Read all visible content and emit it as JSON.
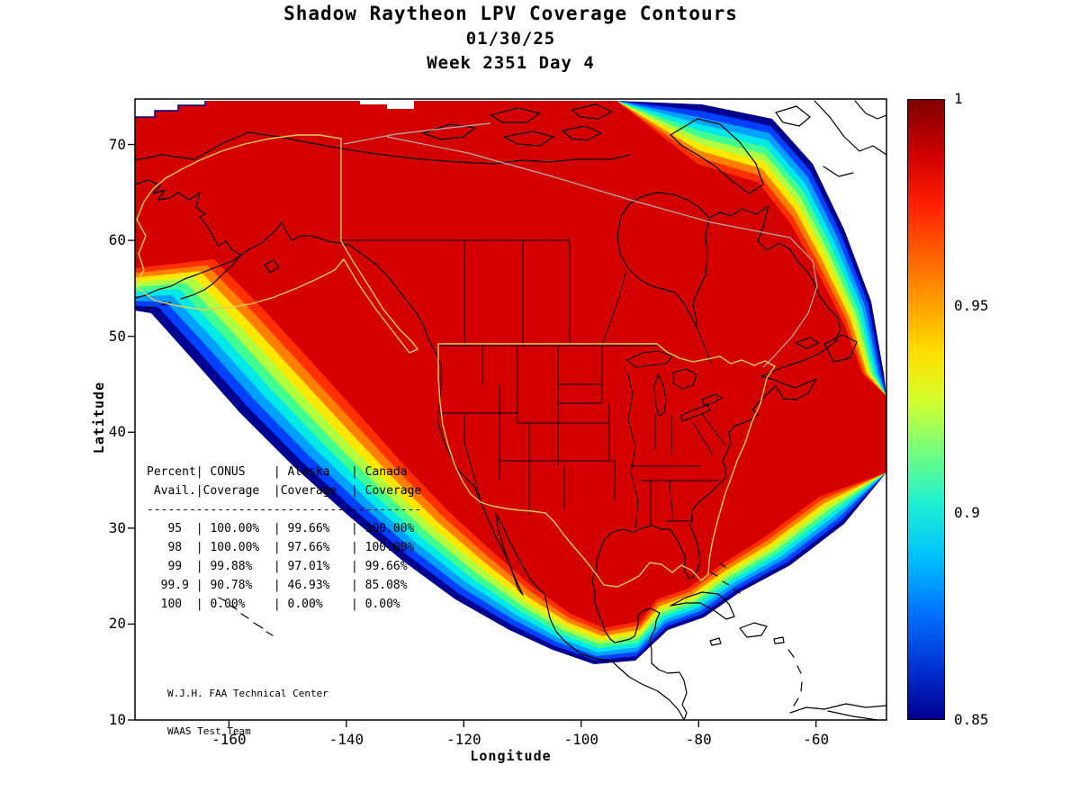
{
  "title": {
    "line1": "Shadow Raytheon LPV Coverage Contours",
    "line2": "01/30/25",
    "line3": "Week 2351 Day 4"
  },
  "axes": {
    "x": {
      "label": "Longitude",
      "ticks": [
        -160,
        -140,
        -120,
        -100,
        -80,
        -60
      ],
      "range": [
        -176,
        -48
      ]
    },
    "y": {
      "label": "Latitude",
      "ticks": [
        70,
        60,
        50,
        40,
        30,
        20,
        10
      ],
      "range": [
        10,
        74.74
      ]
    }
  },
  "colorbar": {
    "min": 0.85,
    "max": 1,
    "colormap": "jet",
    "ticks": [
      {
        "label": "1",
        "value": 1
      },
      {
        "label": "0.95",
        "value": 0.95
      },
      {
        "label": "0.9",
        "value": 0.9
      },
      {
        "label": "0.85",
        "value": 0.85
      }
    ]
  },
  "availability_table": {
    "lines": [
      "Percent| CONUS    | Alaska   | Canada",
      " Avail.|Coverage  |Coverage  | Coverage",
      "---------------------------------------",
      "   95  | 100.00%  | 99.66%   | 100.00%",
      "   98  | 100.00%  | 97.66%   | 100.00%",
      "   99  | 99.88%   | 97.01%   | 99.66%",
      "  99.9 | 90.78%   | 46.93%   | 85.08%",
      "  100  | 0.00%    | 0.00%    | 0.00%"
    ],
    "columns": [
      "Percent Avail.",
      "CONUS Coverage",
      "Alaska Coverage",
      "Canada Coverage"
    ],
    "rows": [
      [
        "95",
        "100.00%",
        "99.66%",
        "100.00%"
      ],
      [
        "98",
        "100.00%",
        "97.66%",
        "100.00%"
      ],
      [
        "99",
        "99.88%",
        "97.01%",
        "99.66%"
      ],
      [
        "99.9",
        "90.78%",
        "46.93%",
        "85.08%"
      ],
      [
        "100",
        "0.00%",
        "0.00%",
        "0.00%"
      ]
    ]
  },
  "footer": {
    "line1": "W.J.H. FAA Technical Center",
    "line2": "WAAS Test Team"
  },
  "palette": {
    "bands": [
      "#000090",
      "#0040ff",
      "#00a0ff",
      "#00e8e8",
      "#40ff90",
      "#b0ff40",
      "#ffe800",
      "#ff8000",
      "#ff3000"
    ],
    "interior": "#d40000",
    "coast": "#000000",
    "service_boundary": "#e3cf4e",
    "canada_boundary": "#b0b0b0"
  },
  "chart_data": [
    {
      "type": "heatmap",
      "title": "Shadow Raytheon LPV Coverage Contours 01/30/25 Week 2351 Day 4",
      "xlabel": "Longitude",
      "ylabel": "Latitude",
      "xlim": [
        -176,
        -48
      ],
      "ylim": [
        10,
        74.74
      ],
      "x_ticks": [
        -160,
        -140,
        -120,
        -100,
        -80,
        -60
      ],
      "y_ticks": [
        10,
        20,
        30,
        40,
        50,
        60,
        70
      ],
      "colorbar": {
        "min": 0.85,
        "max": 1,
        "ticks": [
          0.85,
          0.9,
          0.95,
          1
        ],
        "colormap": "jet"
      },
      "contour_levels": [
        0.85,
        0.867,
        0.883,
        0.9,
        0.917,
        0.933,
        0.95,
        0.967,
        0.983,
        1
      ],
      "description": "LPV coverage availability contours over North America. Solid dark-red interior (availability near 1) covers CONUS, Alaska and Canada service areas; rainbow fringe bands fall to 0.85 along the Pacific southwest edge, southern Mexico/Caribbean and the northeastern Atlantic/arctic edge. Yellow outlines mark CONUS and Alaska service areas; gray lines mark the Canada service area."
    },
    {
      "type": "table",
      "title": "Percent Availability vs Coverage",
      "columns": [
        "Percent Avail.",
        "CONUS Coverage",
        "Alaska Coverage",
        "Canada Coverage"
      ],
      "rows": [
        [
          "95",
          "100.00%",
          "99.66%",
          "100.00%"
        ],
        [
          "98",
          "100.00%",
          "97.66%",
          "100.00%"
        ],
        [
          "99",
          "99.88%",
          "97.01%",
          "99.66%"
        ],
        [
          "99.9",
          "90.78%",
          "46.93%",
          "85.08%"
        ],
        [
          "100",
          "0.00%",
          "0.00%",
          "0.00%"
        ]
      ]
    }
  ]
}
